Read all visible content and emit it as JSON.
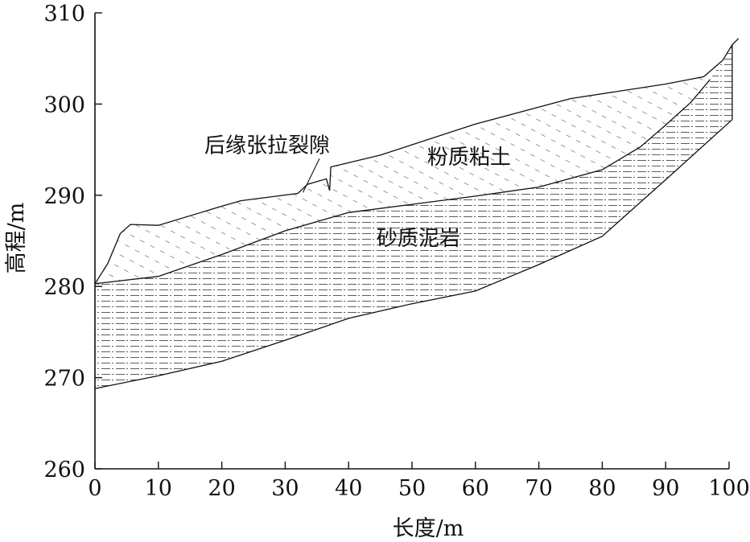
{
  "chart_data": {
    "type": "area",
    "xlabel": "长度/m",
    "ylabel": "高程/m",
    "xlim": [
      0,
      100
    ],
    "ylim": [
      260,
      310
    ],
    "xticks": [
      0,
      10,
      20,
      30,
      40,
      50,
      60,
      70,
      80,
      90,
      100
    ],
    "yticks": [
      260,
      270,
      280,
      290,
      300,
      310
    ],
    "regions": [
      {
        "name": "粉质粘土",
        "label_at": [
          59,
          294.2
        ]
      },
      {
        "name": "砂质泥岩",
        "label_at": [
          51,
          285.3
        ]
      }
    ],
    "annotations": [
      {
        "text": "后缘张拉裂隙",
        "at": [
          17,
          295.6
        ],
        "points_to": [
          32.8,
          290.3
        ]
      }
    ],
    "surfaces": {
      "ground": {
        "x": [
          0,
          2,
          4,
          5.6,
          10,
          20,
          23,
          32,
          33.5,
          36.5,
          37,
          37.2,
          45,
          60,
          75,
          90,
          96,
          99,
          100.5,
          101.5
        ],
        "y": [
          280.3,
          282.5,
          285.8,
          286.8,
          286.7,
          288.8,
          289.4,
          290.2,
          291.2,
          291.8,
          290.5,
          293.1,
          294.4,
          297.8,
          300.6,
          302.2,
          303.0,
          304.8,
          306.5,
          307.2
        ]
      },
      "soil_base": {
        "x": [
          0,
          10,
          20,
          30,
          40,
          50,
          60,
          70,
          80,
          86,
          90,
          94,
          97
        ],
        "y": [
          280.3,
          281.1,
          283.5,
          286.1,
          288.1,
          289.0,
          289.9,
          290.9,
          292.8,
          295.3,
          297.7,
          300.2,
          302.7
        ]
      },
      "rock_base": {
        "x": [
          0,
          10,
          20,
          30,
          40,
          50,
          60,
          70,
          80,
          90,
          100.5
        ],
        "y": [
          268.8,
          270.2,
          271.8,
          274.1,
          276.5,
          278.1,
          279.5,
          282.4,
          285.5,
          291.7,
          298.3
        ]
      }
    }
  }
}
